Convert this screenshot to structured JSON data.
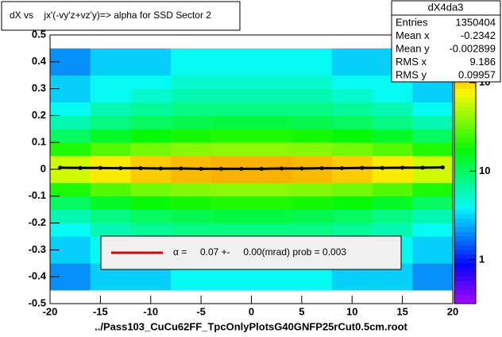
{
  "chart_data": {
    "type": "heatmap",
    "title": "dX vs    jx'(-vy'z+vz'y)=> alpha for SSD Sector 2",
    "x_label": "../Pass103_CuCu62FF_TpcOnlyPlotsG40GNFP25rCut0.5cm.root",
    "xlim": [
      -20,
      20
    ],
    "ylim": [
      -0.5,
      0.5
    ],
    "zlim": [
      0.32,
      345
    ],
    "zlog": true,
    "xticks": [
      -20,
      -15,
      -10,
      -5,
      0,
      5,
      10,
      15,
      20
    ],
    "yticks": [
      -0.5,
      -0.4,
      -0.3,
      -0.2,
      -0.1,
      0,
      0.1,
      0.2,
      0.3,
      0.4,
      0.5
    ],
    "zticks": [
      1,
      10,
      {
        "value": 100,
        "label": "10",
        "exponent": "2"
      }
    ],
    "xbins": [
      -20,
      -16,
      -12,
      -8,
      -4,
      0,
      4,
      8,
      12,
      16,
      20
    ],
    "ybins": [
      -0.45,
      -0.4,
      -0.35,
      -0.3,
      -0.25,
      -0.2,
      -0.15,
      -0.1,
      -0.05,
      0,
      0.05,
      0.1,
      0.15,
      0.2,
      0.25,
      0.3,
      0.35,
      0.4,
      0.45
    ],
    "z": [
      [
        2,
        3,
        3,
        4,
        4,
        4,
        4,
        3,
        3,
        2
      ],
      [
        2,
        3,
        3,
        4,
        4,
        4,
        4,
        3,
        3,
        2
      ],
      [
        3,
        4,
        4,
        5,
        5,
        5,
        5,
        4,
        4,
        3
      ],
      [
        3,
        4,
        5,
        6,
        6,
        6,
        6,
        5,
        4,
        3
      ],
      [
        4,
        6,
        7,
        8,
        8,
        8,
        8,
        7,
        6,
        4
      ],
      [
        6,
        8,
        10,
        11,
        12,
        12,
        11,
        10,
        8,
        6
      ],
      [
        10,
        14,
        17,
        19,
        20,
        20,
        19,
        17,
        14,
        10
      ],
      [
        20,
        28,
        34,
        38,
        40,
        40,
        38,
        34,
        28,
        20
      ],
      [
        60,
        84,
        102,
        114,
        120,
        120,
        114,
        102,
        84,
        60
      ],
      [
        60,
        84,
        102,
        114,
        120,
        120,
        114,
        102,
        84,
        60
      ],
      [
        20,
        28,
        34,
        38,
        40,
        40,
        38,
        34,
        28,
        20
      ],
      [
        10,
        14,
        17,
        19,
        20,
        20,
        19,
        17,
        14,
        10
      ],
      [
        6,
        8,
        10,
        11,
        12,
        12,
        11,
        10,
        8,
        6
      ],
      [
        4,
        6,
        7,
        8,
        8,
        8,
        8,
        7,
        6,
        4
      ],
      [
        3,
        4,
        5,
        6,
        6,
        6,
        6,
        5,
        4,
        3
      ],
      [
        3,
        4,
        4,
        5,
        5,
        5,
        5,
        4,
        4,
        3
      ],
      [
        2,
        3,
        3,
        4,
        4,
        4,
        4,
        3,
        3,
        2
      ],
      [
        2,
        3,
        3,
        4,
        4,
        4,
        4,
        3,
        3,
        2
      ]
    ],
    "profile": {
      "color": "#000000",
      "x": [
        -19,
        -17,
        -15,
        -13,
        -11,
        -9,
        -7,
        -5,
        -3,
        -1,
        1,
        3,
        5,
        7,
        9,
        11,
        13,
        15,
        17,
        19
      ],
      "y": [
        0.006,
        0.005,
        0.005,
        0.004,
        0.004,
        0.003,
        0.003,
        0.002,
        0.002,
        0.002,
        0.002,
        0.003,
        0.003,
        0.004,
        0.004,
        0.005,
        0.005,
        0.006,
        0.006,
        0.007
      ]
    },
    "legend": {
      "text": "α =     0.07 +-     0.00(mrad) prob = 0.003",
      "color": "#dd0000"
    },
    "stats": {
      "title": "dX4da3",
      "rows": [
        [
          "Entries",
          1350404
        ],
        [
          "Mean x",
          -0.2342
        ],
        [
          "Mean y",
          -0.002899
        ],
        [
          "RMS x",
          9.186
        ],
        [
          "RMS y",
          0.09957
        ]
      ]
    }
  }
}
